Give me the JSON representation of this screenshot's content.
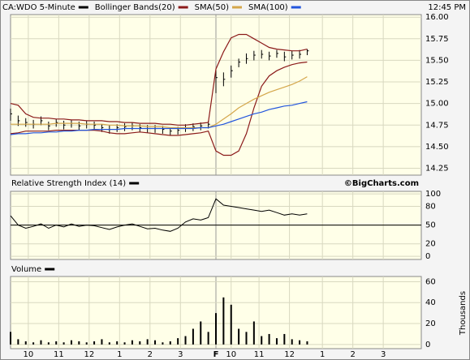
{
  "chart_data": [
    {
      "type": "ohlc",
      "title": "CA:WDO 5-Minute",
      "timestamp": "12:45 PM",
      "x": [
        0,
        3,
        6,
        9,
        12,
        15,
        18,
        21,
        24,
        27,
        30,
        33,
        36,
        39,
        42,
        45,
        48,
        51,
        54,
        57,
        60,
        63,
        66,
        69,
        72,
        75,
        78,
        81,
        84,
        87,
        90,
        93,
        96,
        99,
        102,
        105,
        108,
        111,
        114,
        117
      ],
      "ylim": [
        14.17,
        16.03
      ],
      "yticks": [
        14.25,
        {
          "value": 14.5,
          "label": "14.50"
        },
        14.75,
        {
          "value": 15,
          "label": "15.00"
        },
        15.25,
        {
          "value": 15.5,
          "label": "15.50"
        },
        15.75,
        {
          "value": 16,
          "label": "16.00"
        }
      ],
      "grid": true,
      "series": [
        {
          "name": "CA:WDO 5-Minute",
          "color": "#000000",
          "values": [
            14.88,
            14.8,
            14.78,
            14.76,
            14.8,
            14.74,
            14.78,
            14.75,
            14.77,
            14.74,
            14.76,
            14.75,
            14.72,
            14.7,
            14.72,
            14.73,
            14.74,
            14.72,
            14.71,
            14.71,
            14.7,
            14.68,
            14.69,
            14.72,
            14.73,
            14.74,
            14.76,
            15.3,
            15.28,
            15.38,
            15.48,
            15.52,
            15.56,
            15.57,
            15.55,
            15.58,
            15.54,
            15.56,
            15.57,
            15.61
          ],
          "high": [
            14.94,
            14.86,
            14.83,
            14.81,
            14.85,
            14.79,
            14.82,
            14.8,
            14.81,
            14.79,
            14.8,
            14.79,
            14.76,
            14.75,
            14.76,
            14.77,
            14.78,
            14.76,
            14.75,
            14.75,
            14.74,
            14.72,
            14.73,
            14.76,
            14.77,
            14.78,
            14.8,
            15.4,
            15.36,
            15.44,
            15.52,
            15.58,
            15.61,
            15.62,
            15.6,
            15.62,
            15.6,
            15.61,
            15.62,
            15.63
          ],
          "low": [
            14.8,
            14.74,
            14.73,
            14.71,
            14.75,
            14.69,
            14.73,
            14.7,
            14.72,
            14.69,
            14.71,
            14.7,
            14.67,
            14.65,
            14.67,
            14.68,
            14.69,
            14.67,
            14.66,
            14.66,
            14.65,
            14.63,
            14.64,
            14.67,
            14.68,
            14.69,
            14.71,
            15.12,
            15.2,
            15.3,
            15.42,
            15.46,
            15.5,
            15.52,
            15.5,
            15.53,
            15.49,
            15.51,
            15.52,
            15.56
          ]
        },
        {
          "name": "Bollinger Bands(20)",
          "color": "#8b1a1a",
          "upper": [
            15.0,
            14.98,
            14.88,
            14.84,
            14.83,
            14.83,
            14.82,
            14.82,
            14.81,
            14.81,
            14.8,
            14.8,
            14.8,
            14.79,
            14.79,
            14.78,
            14.78,
            14.77,
            14.77,
            14.77,
            14.76,
            14.76,
            14.75,
            14.75,
            14.76,
            14.77,
            14.78,
            15.4,
            15.6,
            15.76,
            15.8,
            15.8,
            15.75,
            15.7,
            15.65,
            15.63,
            15.62,
            15.61,
            15.61,
            15.63
          ],
          "lower": [
            14.65,
            14.66,
            14.68,
            14.68,
            14.68,
            14.68,
            14.69,
            14.69,
            14.69,
            14.69,
            14.69,
            14.69,
            14.68,
            14.66,
            14.65,
            14.65,
            14.66,
            14.67,
            14.66,
            14.65,
            14.64,
            14.63,
            14.63,
            14.64,
            14.65,
            14.66,
            14.68,
            14.45,
            14.4,
            14.4,
            14.45,
            14.65,
            14.95,
            15.2,
            15.32,
            15.38,
            15.42,
            15.45,
            15.47,
            15.48
          ]
        },
        {
          "name": "SMA(50)",
          "color": "#d4a64a",
          "values": [
            14.76,
            14.76,
            14.76,
            14.76,
            14.76,
            14.76,
            14.77,
            14.77,
            14.77,
            14.77,
            14.76,
            14.76,
            14.76,
            14.75,
            14.75,
            14.74,
            14.74,
            14.74,
            14.73,
            14.73,
            14.73,
            14.72,
            14.72,
            14.72,
            14.72,
            14.72,
            14.72,
            14.76,
            14.82,
            14.88,
            14.95,
            15.0,
            15.05,
            15.09,
            15.13,
            15.16,
            15.19,
            15.22,
            15.26,
            15.31
          ]
        },
        {
          "name": "SMA(100)",
          "color": "#2255dd",
          "values": [
            14.64,
            14.65,
            14.65,
            14.66,
            14.66,
            14.67,
            14.67,
            14.68,
            14.68,
            14.69,
            14.69,
            14.7,
            14.7,
            14.7,
            14.7,
            14.71,
            14.71,
            14.71,
            14.71,
            14.71,
            14.71,
            14.71,
            14.71,
            14.71,
            14.71,
            14.72,
            14.72,
            14.74,
            14.76,
            14.79,
            14.82,
            14.85,
            14.88,
            14.9,
            14.93,
            14.95,
            14.97,
            14.98,
            15.0,
            15.02
          ]
        }
      ],
      "copyright": "©BigCharts.com"
    },
    {
      "type": "line",
      "title": "Relative Strength Index (14)",
      "ylim": [
        -5,
        104
      ],
      "yticks": [
        0,
        20,
        50,
        80,
        100
      ],
      "reference_line": 50,
      "grid": true,
      "series": [
        {
          "name": "Relative Strength Index (14)",
          "color": "#000000",
          "values": [
            65,
            50,
            45,
            48,
            52,
            45,
            50,
            47,
            52,
            48,
            50,
            49,
            46,
            43,
            47,
            50,
            52,
            48,
            44,
            45,
            42,
            40,
            45,
            55,
            60,
            58,
            62,
            92,
            82,
            80,
            78,
            76,
            74,
            72,
            74,
            70,
            66,
            68,
            66,
            68
          ]
        }
      ]
    },
    {
      "type": "bar",
      "title": "Volume",
      "y_label": "Thousands",
      "ylim": [
        -4,
        65
      ],
      "yticks": [
        0,
        20,
        40,
        60
      ],
      "grid": true,
      "color": "#000000",
      "values": [
        12,
        5,
        3,
        2,
        4,
        2,
        3,
        2,
        4,
        3,
        2,
        3,
        5,
        2,
        3,
        2,
        4,
        3,
        5,
        4,
        2,
        3,
        6,
        8,
        15,
        22,
        12,
        30,
        45,
        38,
        15,
        12,
        22,
        8,
        10,
        6,
        10,
        5,
        4,
        3
      ],
      "xlim": [
        0,
        162
      ],
      "xticks": [
        {
          "value": 7,
          "label": "10"
        },
        {
          "value": 19,
          "label": "11"
        },
        {
          "value": 31,
          "label": "12"
        },
        {
          "value": 43,
          "label": "1"
        },
        {
          "value": 55,
          "label": "2"
        },
        {
          "value": 67,
          "label": "3"
        },
        {
          "value": 81,
          "label": "F"
        },
        {
          "value": 87,
          "label": "10"
        },
        {
          "value": 98,
          "label": "11"
        },
        {
          "value": 110,
          "label": "12"
        },
        {
          "value": 123,
          "label": "1"
        },
        {
          "value": 135,
          "label": "2"
        },
        {
          "value": 147,
          "label": "3"
        }
      ]
    }
  ]
}
